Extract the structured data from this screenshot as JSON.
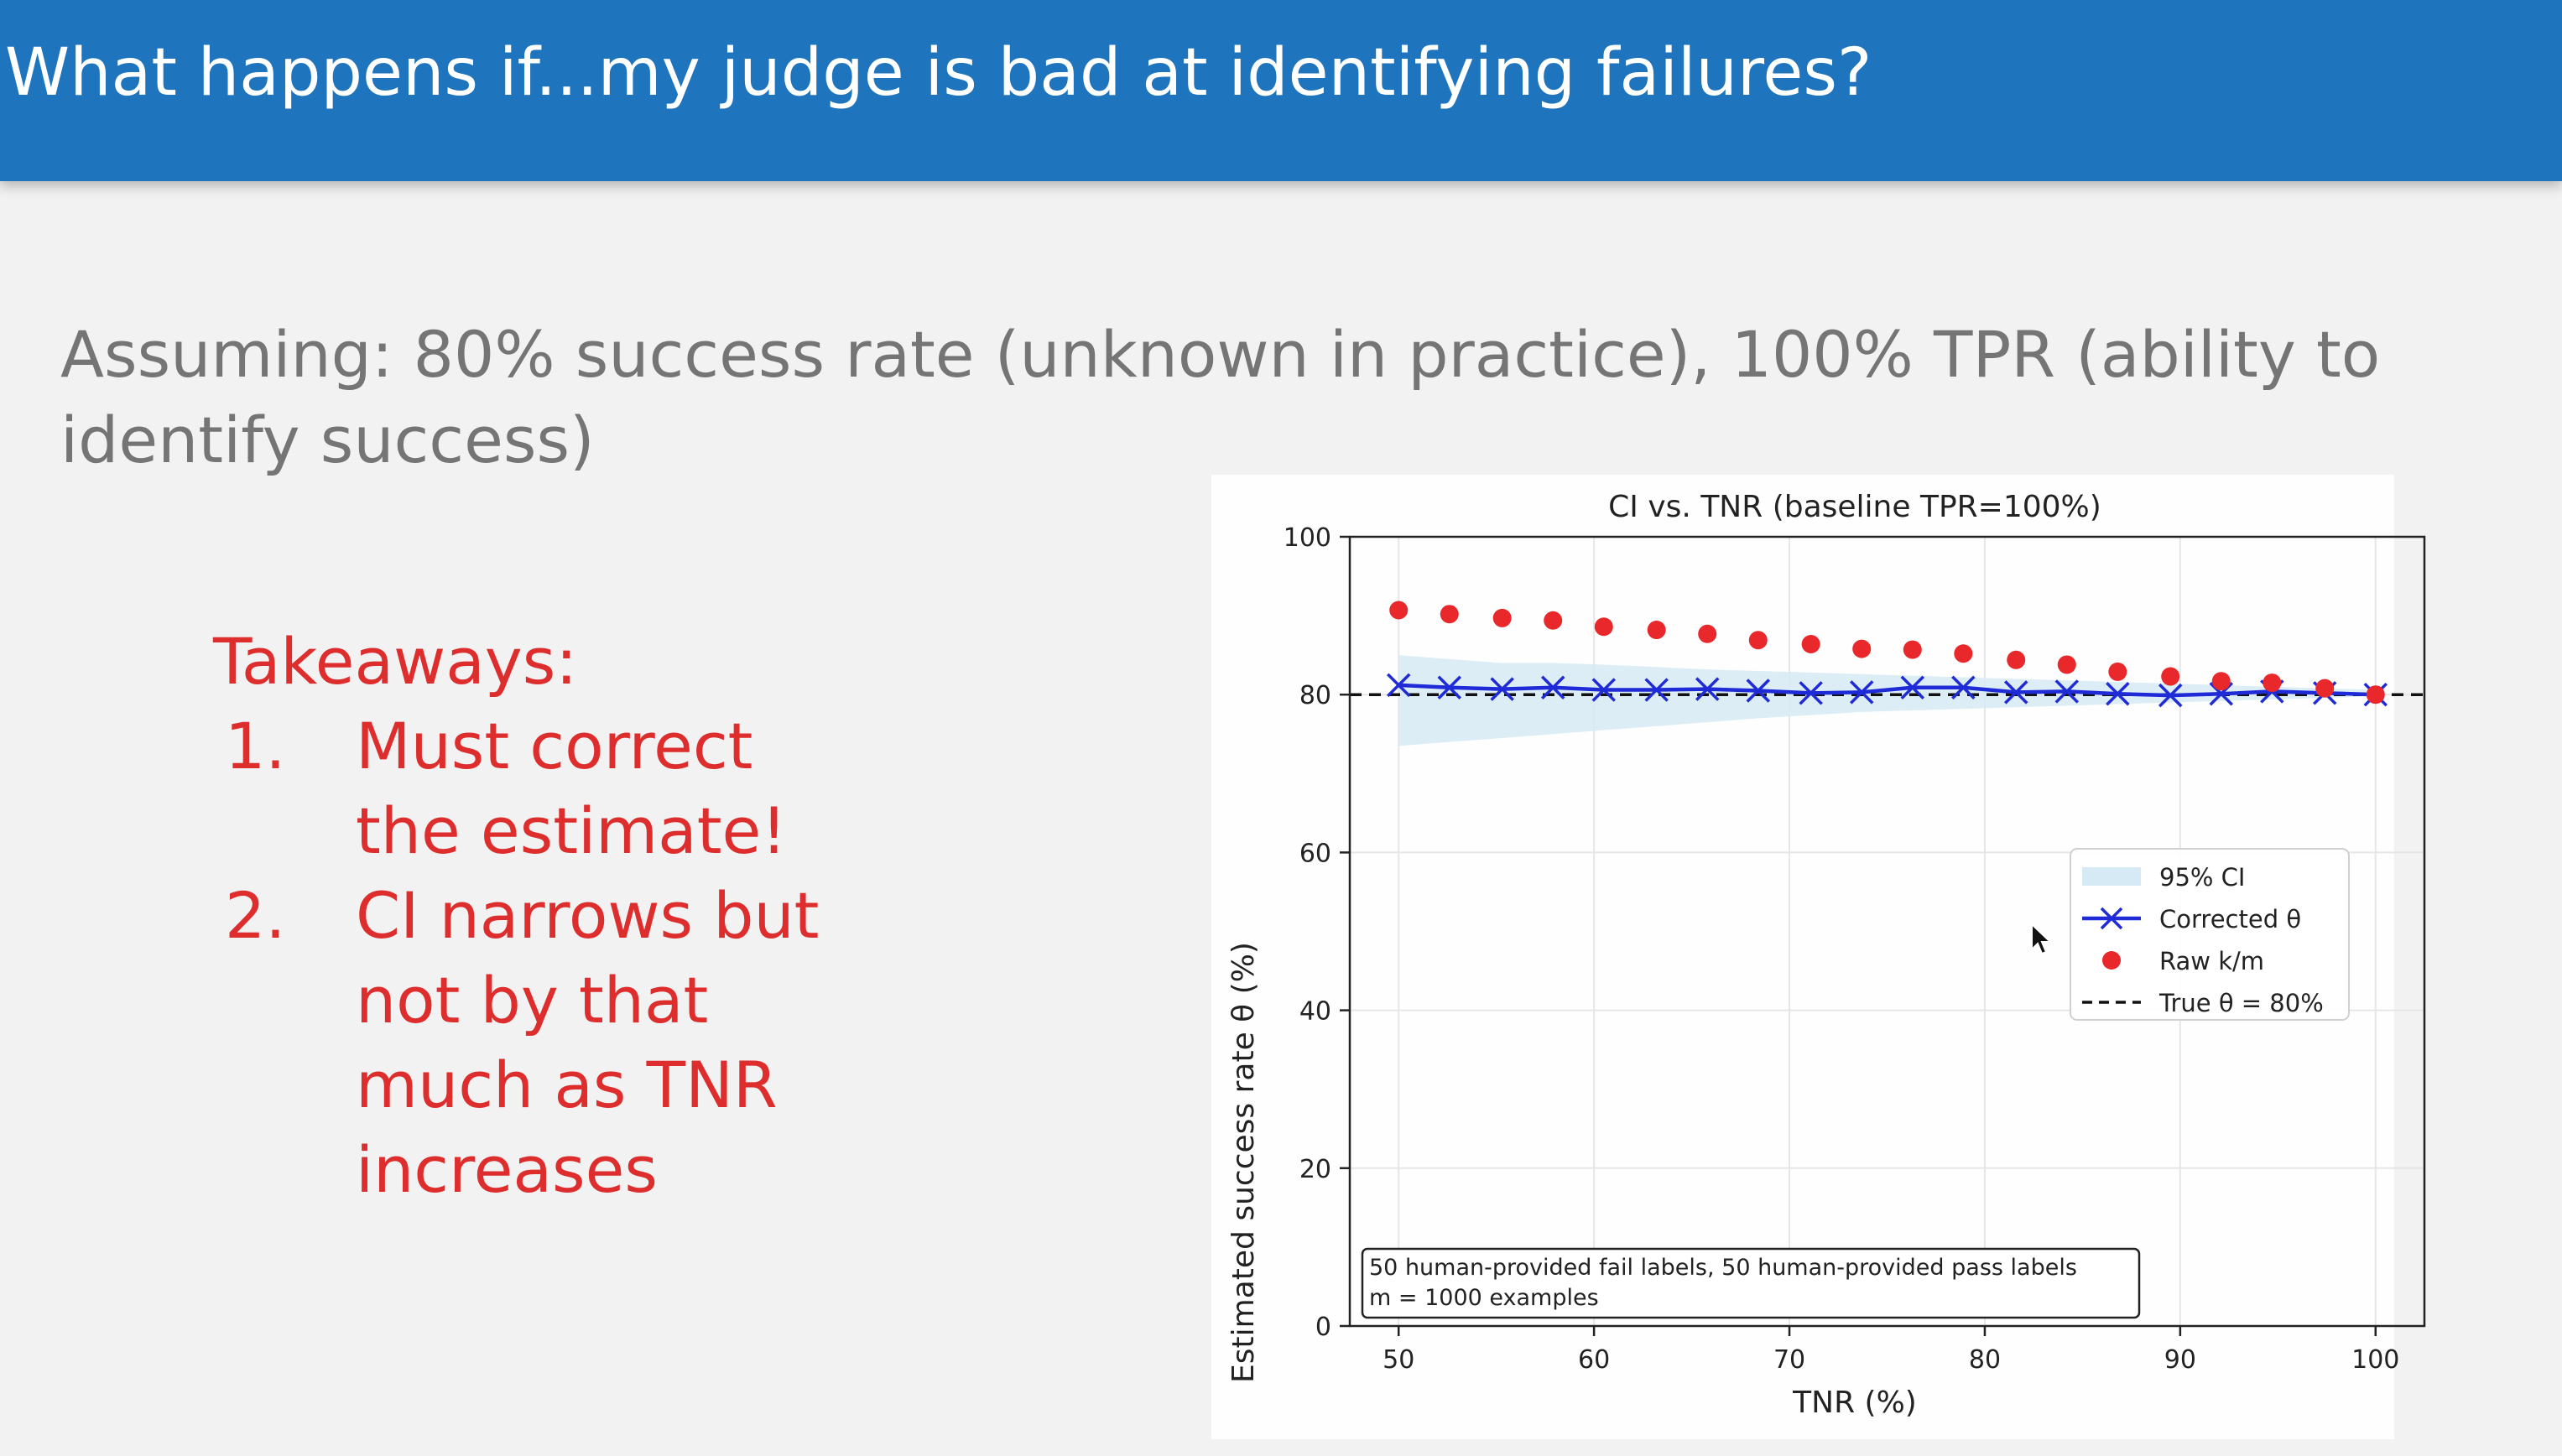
{
  "slide": {
    "title": "What happens if...my judge is bad at identifying failures?",
    "assumption": "Assuming: 80% success rate (unknown in practice), 100% TPR (ability to identify success)",
    "takeaways": {
      "heading": "Takeaways:",
      "items": [
        {
          "num": "1.",
          "text": "Must correct\nthe estimate!"
        },
        {
          "num": "2.",
          "text": "CI narrows but\nnot by that\nmuch as TNR\nincreases"
        }
      ]
    },
    "colors": {
      "header": "#1f75bd",
      "takeaways": "#dd2d2d",
      "raw": "#e8282b",
      "corrected": "#1f2bd6",
      "ci": "#d6eaf5"
    }
  },
  "chart_data": {
    "type": "scatter",
    "title": "CI vs. TNR (baseline TPR=100%)",
    "xlabel": "TNR (%)",
    "ylabel": "Estimated success rate θ (%)",
    "xlim": [
      47.5,
      102.5
    ],
    "ylim": [
      0,
      100
    ],
    "xticks": [
      50,
      60,
      70,
      80,
      90,
      100
    ],
    "yticks": [
      0,
      20,
      40,
      60,
      80,
      100
    ],
    "grid": true,
    "legend_position": "center-right",
    "x": [
      50,
      52.6,
      55.3,
      57.9,
      60.5,
      63.2,
      65.8,
      68.4,
      71.1,
      73.7,
      76.3,
      78.9,
      81.6,
      84.2,
      86.8,
      89.5,
      92.1,
      94.7,
      97.4,
      100
    ],
    "series": [
      {
        "name": "95% CI",
        "kind": "band",
        "lower": [
          73.5,
          74.0,
          74.5,
          75.0,
          75.5,
          76.0,
          76.5,
          77.0,
          77.4,
          77.8,
          78.0,
          78.2,
          78.4,
          78.6,
          78.8,
          79.0,
          79.2,
          79.4,
          79.6,
          79.8
        ],
        "upper": [
          85.0,
          84.5,
          84.0,
          84.0,
          83.8,
          83.5,
          83.2,
          83.0,
          82.8,
          82.6,
          82.4,
          82.2,
          82.0,
          81.8,
          81.6,
          81.4,
          81.2,
          81.0,
          80.8,
          80.6
        ]
      },
      {
        "name": "Corrected θ",
        "kind": "line-x",
        "values": [
          81.2,
          80.9,
          80.7,
          80.9,
          80.6,
          80.6,
          80.7,
          80.5,
          80.2,
          80.3,
          80.9,
          80.9,
          80.3,
          80.4,
          80.1,
          79.9,
          80.1,
          80.4,
          80.2,
          80.0
        ]
      },
      {
        "name": "Raw k/m",
        "kind": "dots",
        "values": [
          90.7,
          90.2,
          89.7,
          89.4,
          88.6,
          88.2,
          87.7,
          86.9,
          86.4,
          85.8,
          85.7,
          85.2,
          84.4,
          83.8,
          82.9,
          82.3,
          81.7,
          81.5,
          80.8,
          80.0
        ]
      },
      {
        "name": "True θ = 80%",
        "kind": "hline",
        "value": 80
      }
    ],
    "annotation": "50 human-provided fail labels, 50 human-provided pass labels\nm = 1000 examples"
  }
}
